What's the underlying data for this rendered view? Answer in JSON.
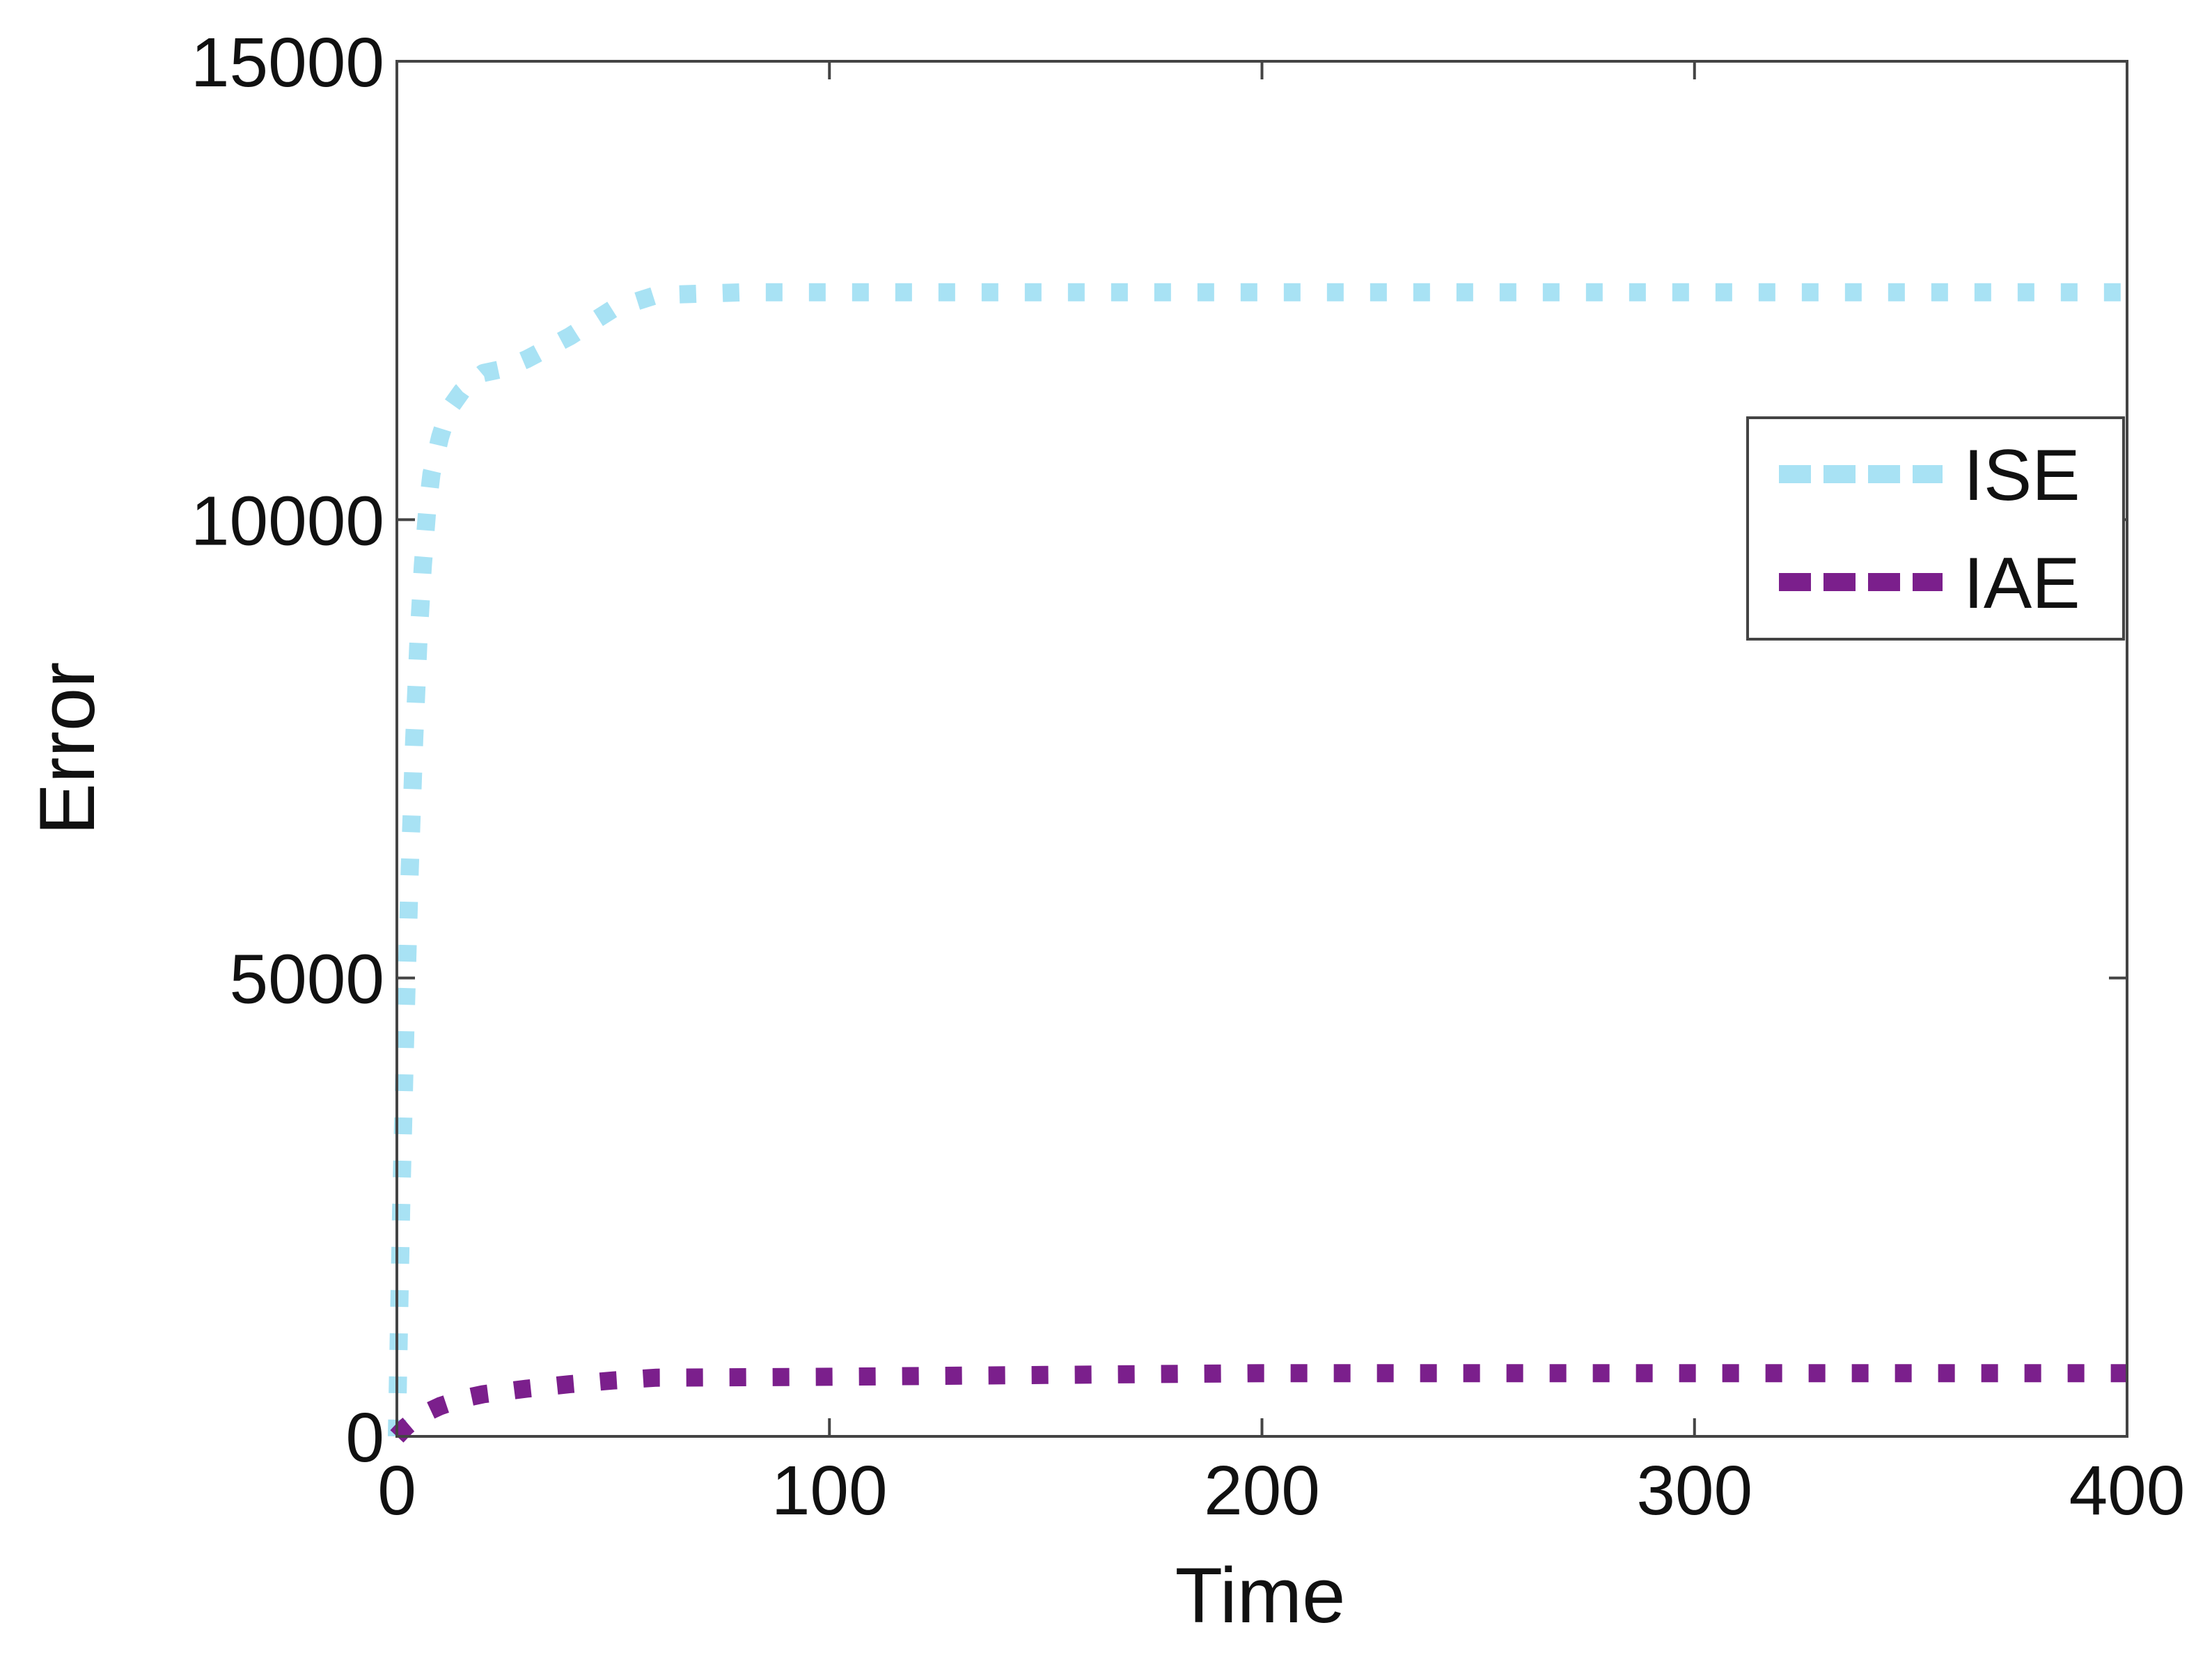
{
  "chart_data": {
    "type": "line",
    "title": "",
    "xlabel": "Time",
    "ylabel": "Error",
    "xlim": [
      0,
      400
    ],
    "ylim": [
      0,
      15000
    ],
    "xticks": [
      "0",
      "100",
      "200",
      "300",
      "400"
    ],
    "yticks": [
      "0",
      "5000",
      "10000",
      "15000"
    ],
    "grid": false,
    "legend_position": "upper-right",
    "series": [
      {
        "name": "ISE",
        "color": "#a8e2f4",
        "style": "dotted",
        "x": [
          0,
          1,
          2,
          3,
          4,
          5,
          6,
          7,
          8,
          10,
          12,
          15,
          20,
          25,
          30,
          40,
          50,
          60,
          80,
          100,
          150,
          200,
          250,
          300,
          350,
          400
        ],
        "y": [
          0,
          2500,
          4500,
          6200,
          7600,
          8700,
          9500,
          10100,
          10500,
          10900,
          11200,
          11400,
          11600,
          11650,
          11750,
          12000,
          12300,
          12450,
          12480,
          12480,
          12480,
          12480,
          12480,
          12480,
          12480,
          12480
        ]
      },
      {
        "name": "IAE",
        "color": "#7b1f8c",
        "style": "dotted",
        "x": [
          0,
          2,
          5,
          10,
          15,
          20,
          30,
          40,
          50,
          60,
          100,
          150,
          200,
          250,
          300,
          350,
          400
        ],
        "y": [
          0,
          100,
          220,
          330,
          410,
          460,
          520,
          570,
          610,
          640,
          650,
          670,
          690,
          690,
          690,
          690,
          690
        ]
      }
    ]
  }
}
